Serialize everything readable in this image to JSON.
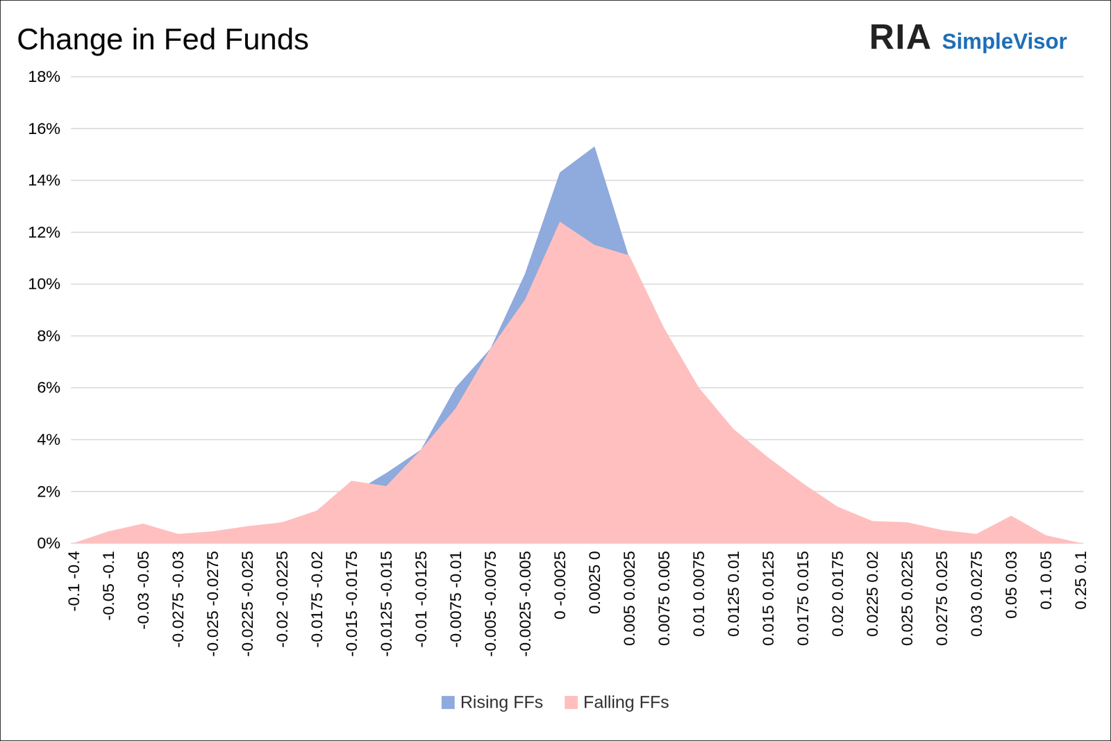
{
  "chart_data": {
    "type": "area",
    "title": "Change in Fed Funds",
    "annotations": [
      "RIA",
      "SimpleVisor"
    ],
    "categories": [
      "-0.1 -0.4",
      "-0.05 -0.1",
      "-0.03 -0.05",
      "-0.0275 -0.03",
      "-0.025 -0.0275",
      "-0.0225 -0.025",
      "-0.02 -0.0225",
      "-0.0175 -0.02",
      "-0.015 -0.0175",
      "-0.0125 -0.015",
      "-0.01 -0.0125",
      "-0.0075 -0.01",
      "-0.005 -0.0075",
      "-0.0025 -0.005",
      "0 -0.0025",
      "0.0025 0",
      "0.005 0.0025",
      "0.0075 0.005",
      "0.01 0.0075",
      "0.0125 0.01",
      "0.015 0.0125",
      "0.0175 0.015",
      "0.02 0.0175",
      "0.0225 0.02",
      "0.025 0.0225",
      "0.0275 0.025",
      "0.03 0.0275",
      "0.05 0.03",
      "0.1 0.05",
      "0.25 0.1"
    ],
    "series": [
      {
        "name": "Rising FFs",
        "color": "#8faadc",
        "values": [
          0,
          0.1,
          0.5,
          0.15,
          0.2,
          0.5,
          0.8,
          0.85,
          1.9,
          2.7,
          3.6,
          6.0,
          7.5,
          10.4,
          14.3,
          15.3,
          11.0,
          7.8,
          5.8,
          3.7,
          2.2,
          1.35,
          1.05,
          0.65,
          0.45,
          0.45,
          0.15,
          0.45,
          0.05,
          0
        ]
      },
      {
        "name": "Falling FFs",
        "color": "#ffbfbf",
        "values": [
          0,
          0.45,
          0.75,
          0.35,
          0.45,
          0.65,
          0.8,
          1.25,
          2.4,
          2.2,
          3.6,
          5.2,
          7.5,
          9.4,
          12.4,
          11.5,
          11.1,
          8.3,
          6.0,
          4.4,
          3.3,
          2.3,
          1.4,
          0.85,
          0.8,
          0.5,
          0.35,
          1.05,
          0.3,
          0
        ]
      }
    ],
    "ylim": [
      0,
      18
    ],
    "yticks": [
      {
        "value": 0,
        "label": "0%"
      },
      {
        "value": 2,
        "label": "2%"
      },
      {
        "value": 4,
        "label": "4%"
      },
      {
        "value": 6,
        "label": "6%"
      },
      {
        "value": 8,
        "label": "8%"
      },
      {
        "value": 10,
        "label": "10%"
      },
      {
        "value": 12,
        "label": "12%"
      },
      {
        "value": 14,
        "label": "14%"
      },
      {
        "value": 16,
        "label": "16%"
      },
      {
        "value": 18,
        "label": "18%"
      }
    ],
    "grid": true,
    "legend": "bottom"
  }
}
